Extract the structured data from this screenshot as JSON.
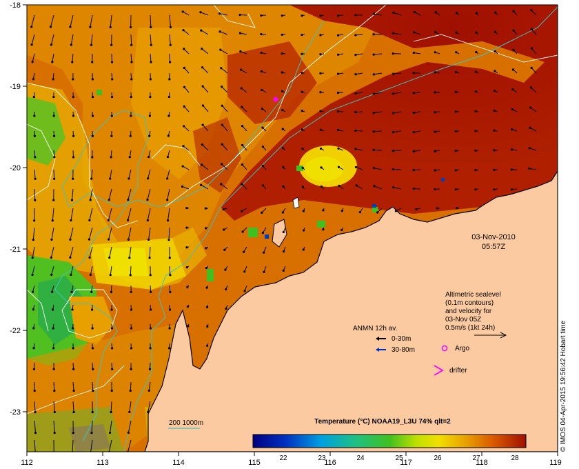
{
  "map": {
    "date": "03-Nov-2010",
    "time": "05:57Z",
    "colorbar_title": "Temperature (°C) NOAA19_L3U 74% qlt=2",
    "colorbar_ticks": [
      "22",
      "23",
      "24",
      "25",
      "26",
      "27",
      "28"
    ],
    "x_ticks": [
      "112",
      "113",
      "114",
      "115",
      "116",
      "117",
      "118",
      "119"
    ],
    "y_ticks": [
      "-18",
      "-19",
      "-20",
      "-21",
      "-22",
      "-23"
    ],
    "sealevel_note": [
      "Altimetric sealevel",
      "(0.1m contours)",
      "and velocity for",
      "03-Nov 05Z",
      "0.5m/s (1kt 24h)"
    ],
    "anmn_title": "ANMN 12h av.",
    "anmn_items": [
      "0-30m",
      "30-80m"
    ],
    "argo_label": "Argo",
    "drifter_label": "drifter",
    "isobath_label": "200  1000m",
    "credit": "© IMOS 04-Apr-2015 19:56:42 Hobart time",
    "colors": {
      "land": "#fccaa0",
      "sst_hot": "#a01000",
      "sst_warm": "#d85a00",
      "sst_mid": "#e8a000",
      "sst_cool": "#f0e000",
      "sst_cold": "#40c020",
      "contour": "#ffffff",
      "isobath": "#40c0c0",
      "argo": "#ff00ff",
      "drifter": "#ff00ff",
      "arrow_shallow": "#000000",
      "arrow_deep": "#0030c0"
    }
  }
}
